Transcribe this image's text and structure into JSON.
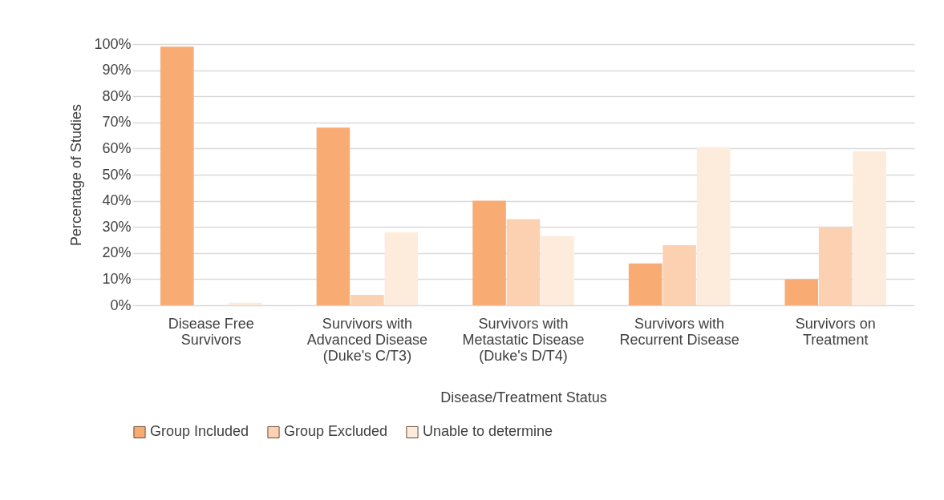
{
  "chart_data": {
    "type": "bar",
    "xlabel": "Disease/Treatment Status",
    "ylabel": "Percentage of Studies",
    "categories": [
      "Disease Free Survivors",
      "Survivors with Advanced Disease (Duke's C/T3)",
      "Survivors with Metastatic Disease (Duke's D/T4)",
      "Survivors with Recurrent Disease",
      "Survivors on Treatment"
    ],
    "series": [
      {
        "name": "Group Included",
        "color": "#f9ab74",
        "values": [
          99,
          68,
          40,
          16,
          10
        ]
      },
      {
        "name": "Group Excluded",
        "color": "#fcd1b1",
        "values": [
          0,
          4,
          33,
          23,
          30
        ]
      },
      {
        "name": "Unable to determine",
        "color": "#fdecdc",
        "values": [
          1,
          28,
          26.5,
          60.5,
          59
        ]
      }
    ],
    "ylim": [
      0,
      100
    ],
    "yticks": [
      {
        "value": 0,
        "label": "0%"
      },
      {
        "value": 10,
        "label": "10%"
      },
      {
        "value": 20,
        "label": "20%"
      },
      {
        "value": 30,
        "label": "30%"
      },
      {
        "value": 40,
        "label": "40%"
      },
      {
        "value": 50,
        "label": "50%"
      },
      {
        "value": 60,
        "label": "60%"
      },
      {
        "value": 70,
        "label": "70%"
      },
      {
        "value": 80,
        "label": "80%"
      },
      {
        "value": 90,
        "label": "90%"
      },
      {
        "value": 100,
        "label": "100%"
      }
    ],
    "grid": "y",
    "legend": "bottom"
  }
}
